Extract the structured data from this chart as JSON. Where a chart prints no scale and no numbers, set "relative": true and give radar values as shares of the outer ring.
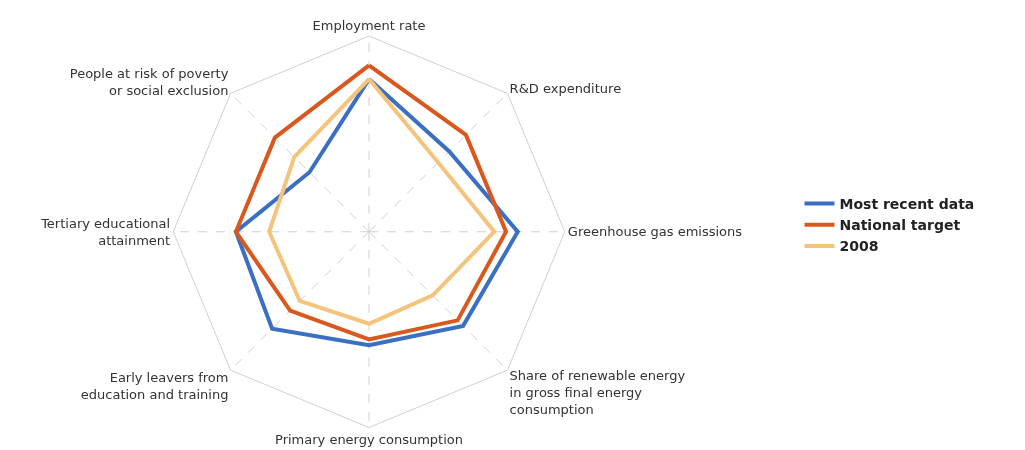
{
  "chart_data": {
    "type": "radar",
    "relative": true,
    "grid": true,
    "legend": "right",
    "marker": "none",
    "line_style": "solid",
    "categories": [
      "Employment rate",
      "R&D expenditure",
      "Greenhouse gas emissions",
      "Share of renewable energy in gross final energy consumption",
      "Primary energy consumption",
      "Early leavers from education and training",
      "Tertiary educational attainment",
      "People at risk of poverty or social exclusion"
    ],
    "series": [
      {
        "name": "Most recent data",
        "color": "#3a6fc4",
        "values": [
          0.78,
          0.58,
          0.76,
          0.68,
          0.58,
          0.7,
          0.68,
          0.43
        ]
      },
      {
        "name": "National target",
        "color": "#d9581e",
        "values": [
          0.85,
          0.7,
          0.7,
          0.64,
          0.55,
          0.57,
          0.68,
          0.68
        ]
      },
      {
        "name": "2008",
        "color": "#f5c47c",
        "values": [
          0.78,
          0.5,
          0.64,
          0.46,
          0.47,
          0.5,
          0.51,
          0.54
        ]
      }
    ]
  }
}
